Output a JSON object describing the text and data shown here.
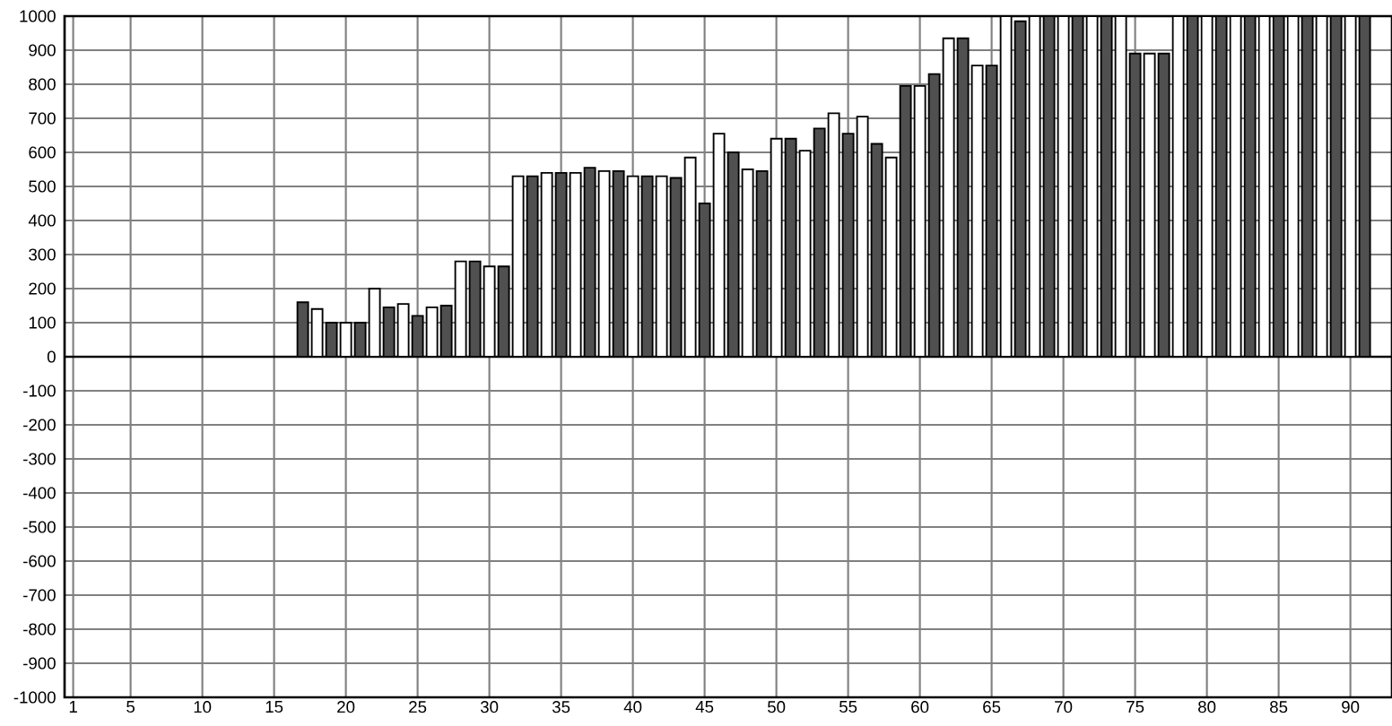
{
  "chart_data": {
    "type": "bar",
    "x": [
      17,
      18,
      19,
      20,
      21,
      22,
      23,
      24,
      25,
      26,
      27,
      28,
      29,
      30,
      31,
      32,
      33,
      34,
      35,
      36,
      37,
      38,
      39,
      40,
      41,
      42,
      43,
      44,
      45,
      46,
      47,
      48,
      49,
      50,
      51,
      52,
      53,
      54,
      55,
      56,
      57,
      58,
      59,
      60,
      61,
      62,
      63,
      64,
      65,
      66,
      67,
      68,
      69,
      70,
      71,
      72,
      73,
      74,
      75,
      76,
      77,
      78,
      79,
      80,
      81,
      82,
      83,
      84,
      85,
      86,
      87,
      88,
      89,
      90,
      91
    ],
    "values": [
      160,
      140,
      100,
      100,
      100,
      200,
      145,
      155,
      120,
      145,
      150,
      280,
      280,
      265,
      265,
      530,
      530,
      540,
      540,
      540,
      555,
      545,
      545,
      530,
      530,
      530,
      525,
      585,
      450,
      655,
      600,
      550,
      545,
      640,
      640,
      605,
      670,
      715,
      655,
      705,
      625,
      585,
      795,
      795,
      830,
      935,
      935,
      855,
      855,
      1000,
      985,
      1000,
      1000,
      1000,
      1000,
      1000,
      1000,
      1000,
      890,
      890,
      890,
      1000,
      1000,
      1000,
      1000,
      1000,
      1000,
      1000,
      1000,
      1000,
      1000,
      1000,
      1000,
      1000,
      1000
    ],
    "colors": [
      "#505050",
      "#ffffff",
      "#505050",
      "#ffffff",
      "#505050",
      "#ffffff",
      "#505050",
      "#ffffff",
      "#505050",
      "#ffffff",
      "#505050",
      "#ffffff",
      "#505050",
      "#ffffff",
      "#505050",
      "#ffffff",
      "#505050",
      "#ffffff",
      "#505050",
      "#ffffff",
      "#505050",
      "#ffffff",
      "#505050",
      "#ffffff",
      "#505050",
      "#ffffff",
      "#505050",
      "#ffffff",
      "#505050",
      "#ffffff",
      "#505050",
      "#ffffff",
      "#505050",
      "#ffffff",
      "#505050",
      "#ffffff",
      "#505050",
      "#ffffff",
      "#505050",
      "#ffffff",
      "#505050",
      "#ffffff",
      "#505050",
      "#ffffff",
      "#505050",
      "#ffffff",
      "#505050",
      "#ffffff",
      "#505050",
      "#ffffff",
      "#505050",
      "#ffffff",
      "#505050",
      "#ffffff",
      "#505050",
      "#ffffff",
      "#505050",
      "#ffffff",
      "#505050",
      "#ffffff",
      "#505050",
      "#ffffff",
      "#505050",
      "#ffffff",
      "#505050",
      "#ffffff",
      "#505050",
      "#ffffff",
      "#505050",
      "#ffffff",
      "#505050",
      "#ffffff",
      "#505050",
      "#ffffff",
      "#505050"
    ],
    "xlim": [
      0.4,
      92.9
    ],
    "ylim": [
      -1000,
      1000
    ],
    "xticks": [
      1,
      5,
      10,
      15,
      20,
      25,
      30,
      35,
      40,
      45,
      50,
      55,
      60,
      65,
      70,
      75,
      80,
      85,
      90
    ],
    "yticks": [
      -1000,
      -900,
      -800,
      -700,
      -600,
      -500,
      -400,
      -300,
      -200,
      -100,
      0,
      100,
      200,
      300,
      400,
      500,
      600,
      700,
      800,
      900,
      1000
    ],
    "grid": true
  }
}
